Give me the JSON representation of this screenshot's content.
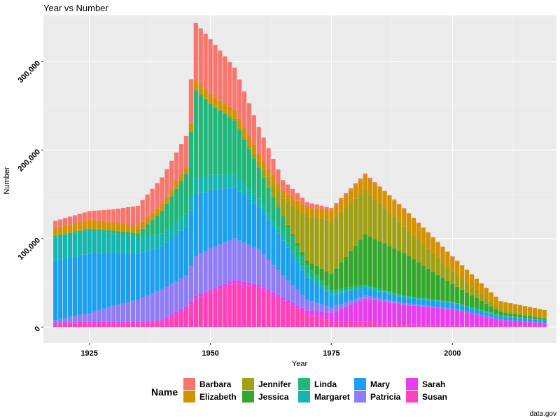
{
  "chart_data": {
    "type": "bar",
    "stacked": true,
    "title": "Year vs Number",
    "xlabel": "Year",
    "ylabel": "Number",
    "caption": "data.gov",
    "legend_title": "Name",
    "legend_position": "bottom",
    "x_ticks": [
      1925,
      1950,
      1975,
      2000
    ],
    "y_ticks": [
      0,
      100000,
      200000,
      300000
    ],
    "y_tick_labels": [
      "0",
      "100,000",
      "200,000",
      "300,000"
    ],
    "xlim": [
      1915.5,
      2021.5
    ],
    "ylim": [
      -18000,
      352000
    ],
    "grid": true,
    "x": [
      1918,
      1925,
      1930,
      1935,
      1940,
      1945,
      1947,
      1950,
      1955,
      1960,
      1965,
      1970,
      1975,
      1982,
      1990,
      2000,
      2010,
      2019
    ],
    "series": [
      {
        "name": "Susan",
        "color": "#FF40B8",
        "values": [
          3000,
          4000,
          4000,
          4000,
          6000,
          20000,
          32000,
          39000,
          50000,
          45000,
          30000,
          15000,
          7000,
          6000,
          3000,
          2000,
          1000,
          500
        ]
      },
      {
        "name": "Sarah",
        "color": "#E93CF0",
        "values": [
          2000,
          2000,
          2000,
          2000,
          2000,
          3000,
          3000,
          3000,
          3000,
          3000,
          3000,
          4000,
          9000,
          26000,
          22000,
          18000,
          7000,
          4000
        ]
      },
      {
        "name": "Patricia",
        "color": "#8F7CF8",
        "values": [
          3000,
          10000,
          18000,
          25000,
          35000,
          35000,
          45000,
          47000,
          47000,
          40000,
          25000,
          12000,
          6000,
          4000,
          2000,
          1000,
          500,
          300
        ]
      },
      {
        "name": "Mary",
        "color": "#1BA0F0",
        "values": [
          67000,
          67000,
          60000,
          52000,
          48000,
          55000,
          70000,
          65000,
          58000,
          47000,
          40000,
          25000,
          14000,
          8000,
          6000,
          6000,
          3500,
          2500
        ]
      },
      {
        "name": "Margaret",
        "color": "#16B6B0",
        "values": [
          27000,
          26000,
          22000,
          18000,
          15000,
          15000,
          18000,
          18000,
          15000,
          10000,
          6000,
          4000,
          2000,
          2000,
          1500,
          1000,
          800,
          700
        ]
      },
      {
        "name": "Linda",
        "color": "#1FB77A",
        "values": [
          1000,
          2000,
          3000,
          5000,
          25000,
          45000,
          100000,
          80000,
          60000,
          35000,
          20000,
          10000,
          4000,
          2000,
          1000,
          500,
          300,
          200
        ]
      },
      {
        "name": "Jessica",
        "color": "#32A82C",
        "values": [
          0,
          0,
          0,
          0,
          0,
          0,
          0,
          0,
          0,
          0,
          1000,
          5000,
          18000,
          57000,
          48000,
          20000,
          4000,
          1500
        ]
      },
      {
        "name": "Jennifer",
        "color": "#A0A014",
        "values": [
          0,
          0,
          0,
          0,
          0,
          0,
          500,
          1000,
          2000,
          6000,
          20000,
          50000,
          60000,
          50000,
          30000,
          14000,
          3000,
          1500
        ]
      },
      {
        "name": "Elizabeth",
        "color": "#D39200",
        "values": [
          9000,
          10000,
          9000,
          8000,
          8000,
          8000,
          10000,
          10000,
          10000,
          10000,
          9000,
          10000,
          12000,
          17000,
          20000,
          17000,
          9000,
          8000
        ]
      },
      {
        "name": "Barbara",
        "color": "#F8766D",
        "values": [
          8000,
          10000,
          15000,
          23000,
          30000,
          35000,
          65000,
          62000,
          48000,
          30000,
          12000,
          6000,
          2500,
          1500,
          800,
          400,
          200,
          150
        ]
      }
    ],
    "legend_columns": [
      [
        "Barbara",
        "Elizabeth"
      ],
      [
        "Jennifer",
        "Jessica"
      ],
      [
        "Linda",
        "Margaret"
      ],
      [
        "Mary",
        "Patricia"
      ],
      [
        "Sarah",
        "Susan"
      ]
    ]
  }
}
